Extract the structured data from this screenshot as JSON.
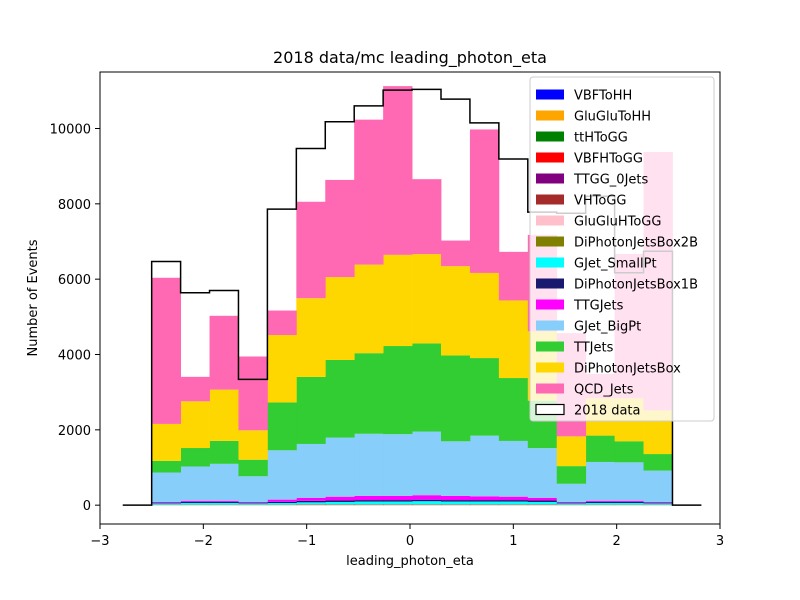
{
  "chart_data": {
    "type": "bar",
    "stacked": true,
    "title": "2018 data/mc leading_photon_eta",
    "xlabel": "leading_photon_eta",
    "ylabel": "Number of Events",
    "xlim": [
      -3,
      3
    ],
    "ylim": [
      -500,
      11500
    ],
    "xticks": [
      -3,
      -2,
      -1,
      0,
      1,
      2,
      3
    ],
    "xtick_labels": [
      "−3",
      "−2",
      "−1",
      "0",
      "1",
      "2",
      "3"
    ],
    "yticks": [
      0,
      2000,
      4000,
      6000,
      8000,
      10000
    ],
    "ytick_labels": [
      "0",
      "2000",
      "4000",
      "6000",
      "8000",
      "10000"
    ],
    "grid": false,
    "legend_position": "top-right",
    "bin_edges": [
      -2.5,
      -2.22,
      -1.94,
      -1.66,
      -1.38,
      -1.1,
      -0.82,
      -0.54,
      -0.26,
      0.02,
      0.3,
      0.58,
      0.86,
      1.14,
      1.42,
      1.7,
      1.98,
      2.26,
      2.54
    ],
    "series": [
      {
        "name": "VBFToHH",
        "color": "#0000ff",
        "values": [
          0,
          0,
          0,
          0,
          0,
          0,
          0,
          0,
          0,
          0,
          0,
          0,
          0,
          0,
          0,
          0,
          0,
          0
        ]
      },
      {
        "name": "GluGluToHH",
        "color": "#ffa500",
        "values": [
          0,
          0,
          0,
          0,
          0,
          0,
          0,
          0,
          0,
          0,
          0,
          0,
          0,
          0,
          0,
          0,
          0,
          0
        ]
      },
      {
        "name": "ttHToGG",
        "color": "#008000",
        "values": [
          5,
          5,
          5,
          5,
          5,
          8,
          8,
          8,
          8,
          8,
          8,
          8,
          8,
          8,
          5,
          5,
          5,
          5
        ]
      },
      {
        "name": "VBFHToGG",
        "color": "#ff0000",
        "values": [
          3,
          3,
          3,
          3,
          3,
          5,
          5,
          5,
          5,
          5,
          5,
          5,
          5,
          5,
          3,
          3,
          3,
          3
        ]
      },
      {
        "name": "TTGG_0Jets",
        "color": "#800080",
        "values": [
          2,
          2,
          2,
          2,
          2,
          3,
          3,
          3,
          3,
          3,
          3,
          3,
          3,
          3,
          2,
          2,
          2,
          2
        ]
      },
      {
        "name": "VHToGG",
        "color": "#a52a2a",
        "values": [
          2,
          2,
          2,
          2,
          2,
          3,
          3,
          3,
          3,
          3,
          3,
          3,
          3,
          3,
          2,
          2,
          2,
          2
        ]
      },
      {
        "name": "GluGluHToGG",
        "color": "#ffc0cb",
        "values": [
          3,
          3,
          3,
          3,
          3,
          4,
          4,
          4,
          4,
          4,
          4,
          4,
          4,
          4,
          3,
          3,
          3,
          3
        ]
      },
      {
        "name": "DiPhotonJetsBox2B",
        "color": "#808000",
        "values": [
          2,
          2,
          2,
          2,
          2,
          2,
          2,
          2,
          2,
          2,
          2,
          2,
          2,
          2,
          2,
          2,
          2,
          2
        ]
      },
      {
        "name": "GJet_SmallPt",
        "color": "#00ffff",
        "values": [
          30,
          40,
          40,
          30,
          40,
          50,
          60,
          70,
          70,
          80,
          70,
          70,
          70,
          60,
          30,
          40,
          40,
          30
        ]
      },
      {
        "name": "DiPhotonJetsBox1B",
        "color": "#191970",
        "values": [
          20,
          30,
          30,
          20,
          30,
          40,
          40,
          40,
          40,
          40,
          40,
          40,
          40,
          40,
          20,
          30,
          30,
          20
        ]
      },
      {
        "name": "TTGJets",
        "color": "#ff00ff",
        "values": [
          20,
          30,
          30,
          20,
          60,
          80,
          100,
          110,
          110,
          120,
          110,
          100,
          90,
          70,
          20,
          30,
          30,
          20
        ]
      },
      {
        "name": "GJet_BigPt",
        "color": "#87cefa",
        "values": [
          780,
          910,
          980,
          680,
          1310,
          1430,
          1570,
          1650,
          1640,
          1690,
          1450,
          1610,
          1480,
          1320,
          480,
          1030,
          1020,
          830
        ]
      },
      {
        "name": "TTJets",
        "color": "#32cd32",
        "values": [
          310,
          490,
          610,
          440,
          1270,
          1780,
          2060,
          2140,
          2340,
          2340,
          2280,
          2060,
          1670,
          1260,
          470,
          700,
          560,
          440
        ]
      },
      {
        "name": "DiPhotonJetsBox",
        "color": "#ffd700",
        "values": [
          980,
          1240,
          1360,
          780,
          1790,
          2090,
          2200,
          2350,
          2420,
          2370,
          2370,
          2260,
          2060,
          1840,
          790,
          990,
          1140,
          1160
        ]
      },
      {
        "name": "QCD_Jets",
        "color": "#ff69b4",
        "values": [
          3880,
          650,
          1960,
          1960,
          650,
          2560,
          2580,
          3850,
          4480,
          1990,
          680,
          3810,
          1290,
          2560,
          2740,
          650,
          3830,
          6860
        ]
      }
    ],
    "data_series": {
      "name": "2018 data",
      "color": "#000000",
      "values": [
        6470,
        5640,
        5700,
        3340,
        7860,
        9470,
        10180,
        10600,
        11020,
        11040,
        10780,
        10150,
        9190,
        7780,
        7750,
        8200,
        6170,
        6740
      ]
    }
  }
}
